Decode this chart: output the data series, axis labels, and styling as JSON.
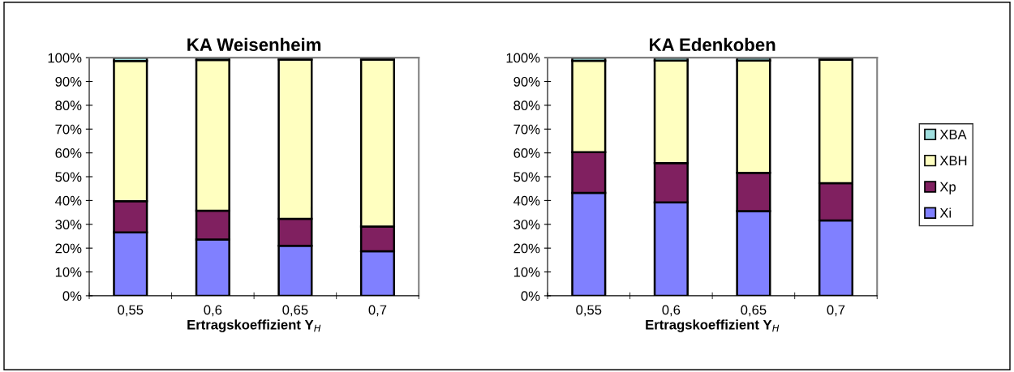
{
  "chart_data": [
    {
      "type": "bar",
      "stacked": true,
      "title": "KA Weisenheim",
      "xlabel": "Ertragskoeffizient Y$_{H}$",
      "categories": [
        "0,55",
        "0,6",
        "0,65",
        "0,7"
      ],
      "ylim": [
        0,
        100
      ],
      "yticks": [
        {
          "value": 0,
          "label": "0%"
        },
        {
          "value": 10,
          "label": "10%"
        },
        {
          "value": 20,
          "label": "20%"
        },
        {
          "value": 30,
          "label": "30%"
        },
        {
          "value": 40,
          "label": "40%"
        },
        {
          "value": 50,
          "label": "50%"
        },
        {
          "value": 60,
          "label": "60%"
        },
        {
          "value": 70,
          "label": "70%"
        },
        {
          "value": 80,
          "label": "80%"
        },
        {
          "value": 90,
          "label": "90%"
        },
        {
          "value": 100,
          "label": "100%"
        }
      ],
      "grid": false,
      "legend": "right",
      "series": [
        {
          "name": "Xi",
          "color": "#8080ff",
          "values": [
            26.6,
            23.6,
            21.0,
            18.7
          ]
        },
        {
          "name": "Xp",
          "color": "#802060",
          "values": [
            13.1,
            12.1,
            11.3,
            10.4
          ]
        },
        {
          "name": "XBH",
          "color": "#ffffc0",
          "values": [
            58.9,
            63.3,
            66.9,
            70.1
          ]
        },
        {
          "name": "XBA",
          "color": "#a0e0e0",
          "values": [
            1.4,
            1.0,
            0.8,
            0.8
          ]
        }
      ]
    },
    {
      "type": "bar",
      "stacked": true,
      "title": "KA Edenkoben",
      "xlabel": "Ertragskoeffizient Y$_{H}$",
      "categories": [
        "0,55",
        "0,6",
        "0,65",
        "0,7"
      ],
      "ylim": [
        0,
        100
      ],
      "yticks": [
        {
          "value": 0,
          "label": "0%"
        },
        {
          "value": 10,
          "label": "10%"
        },
        {
          "value": 20,
          "label": "20%"
        },
        {
          "value": 30,
          "label": "30%"
        },
        {
          "value": 40,
          "label": "40%"
        },
        {
          "value": 50,
          "label": "50%"
        },
        {
          "value": 60,
          "label": "60%"
        },
        {
          "value": 70,
          "label": "70%"
        },
        {
          "value": 80,
          "label": "80%"
        },
        {
          "value": 90,
          "label": "90%"
        },
        {
          "value": 100,
          "label": "100%"
        }
      ],
      "grid": false,
      "series": [
        {
          "color": "#8080ff",
          "values": [
            43.2,
            39.2,
            35.5,
            31.6
          ]
        },
        {
          "color": "#802060",
          "values": [
            17.1,
            16.5,
            16.1,
            15.7
          ]
        },
        {
          "color": "#ffffc0",
          "values": [
            38.4,
            43.1,
            47.2,
            51.8
          ]
        },
        {
          "color": "#a0e0e0",
          "values": [
            1.3,
            1.2,
            1.2,
            0.9
          ]
        }
      ]
    }
  ]
}
